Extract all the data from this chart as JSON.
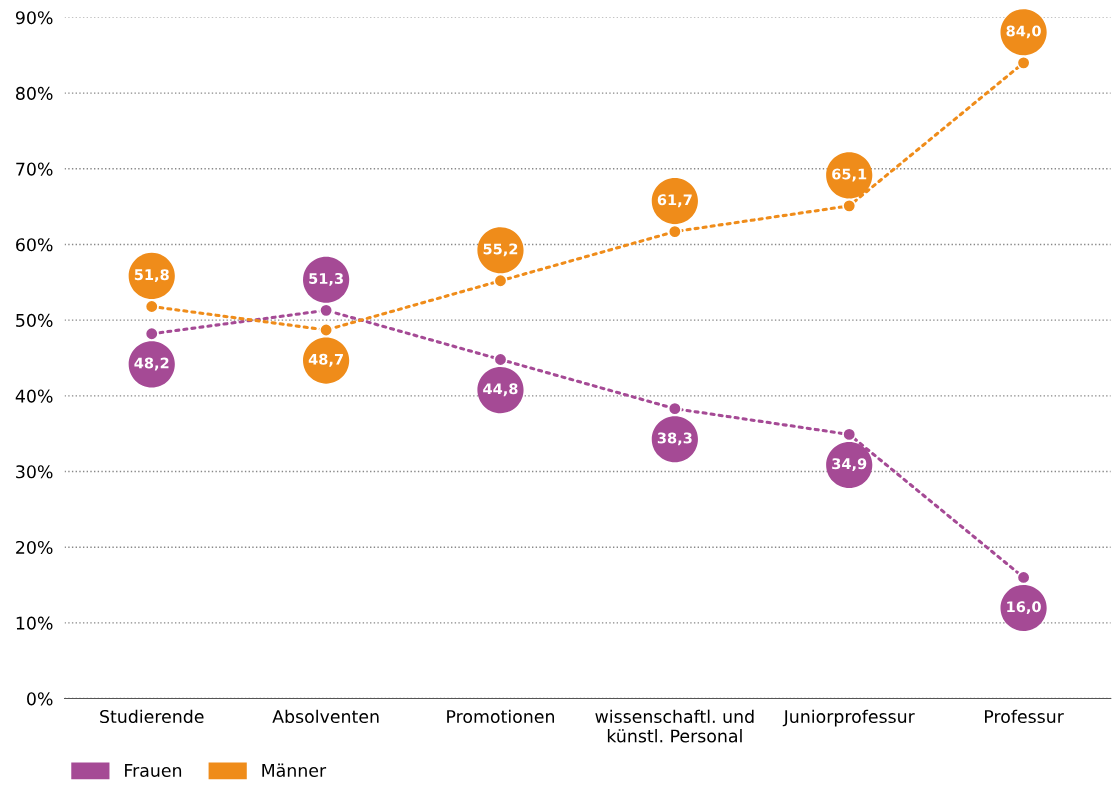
{
  "chart_data": {
    "type": "line",
    "categories": [
      "Studierende",
      "Absolventen",
      "Promotionen",
      "wissenschaftl. und\nkünstl. Personal",
      "Juniorprofessur",
      "Professur"
    ],
    "series": [
      {
        "name": "Frauen",
        "color": "#a54a95",
        "values": [
          48.2,
          51.3,
          44.8,
          38.3,
          34.9,
          16.0
        ],
        "value_labels": [
          "48,2",
          "51,3",
          "44,8",
          "38,3",
          "34,9",
          "16,0"
        ]
      },
      {
        "name": "Männer",
        "color": "#ef8c1a",
        "values": [
          51.8,
          48.7,
          55.2,
          61.7,
          65.1,
          84.0
        ],
        "value_labels": [
          "51,8",
          "48,7",
          "55,2",
          "61,7",
          "65,1",
          "84,0"
        ]
      }
    ],
    "ylim": [
      0,
      90
    ],
    "yticks": [
      {
        "value": 0,
        "label": "0%"
      },
      {
        "value": 10,
        "label": "10%"
      },
      {
        "value": 20,
        "label": "20%"
      },
      {
        "value": 30,
        "label": "30%"
      },
      {
        "value": 40,
        "label": "40%"
      },
      {
        "value": 50,
        "label": "50%"
      },
      {
        "value": 60,
        "label": "60%"
      },
      {
        "value": 70,
        "label": "70%"
      },
      {
        "value": 80,
        "label": "80%"
      },
      {
        "value": 90,
        "label": "90%"
      }
    ],
    "grid": "y",
    "legend": "bottom left",
    "marker": "circle",
    "line_style": "dotted"
  }
}
